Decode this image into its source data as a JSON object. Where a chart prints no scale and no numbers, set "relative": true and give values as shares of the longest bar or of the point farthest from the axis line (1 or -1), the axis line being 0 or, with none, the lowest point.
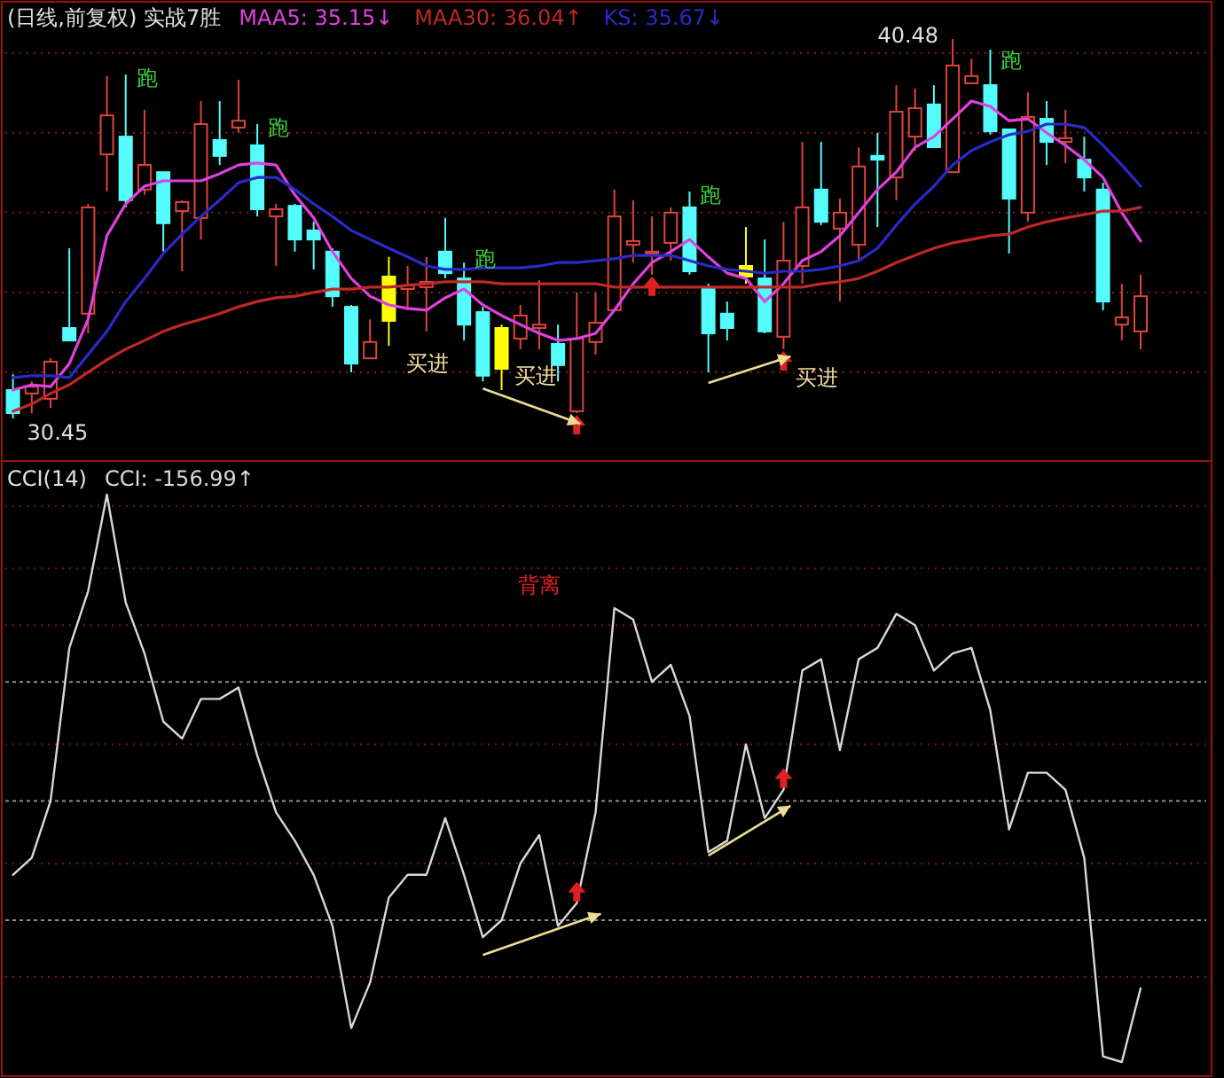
{
  "chart_data": [
    {
      "type": "candlestick",
      "title": "(日线,前复权) 实战7胜",
      "legend": "top left",
      "grid": true,
      "yticks": [
        {
          "value": 40.11,
          "label": null
        },
        {
          "value": 38.0,
          "label": null
        },
        {
          "value": 35.89,
          "label": null
        },
        {
          "value": 33.78,
          "label": null
        },
        {
          "value": 31.67,
          "label": null
        }
      ],
      "categories": [
        null,
        null,
        null,
        null,
        null,
        null,
        null,
        null,
        null,
        null,
        null,
        null,
        null,
        null,
        null,
        null,
        null,
        null,
        null,
        null,
        null,
        null,
        null,
        null,
        null,
        null,
        null,
        null,
        null,
        null,
        null,
        null,
        null,
        null,
        null,
        null,
        null,
        null,
        null,
        null,
        null,
        null,
        null,
        null,
        null,
        null,
        null,
        null,
        null,
        null,
        null,
        null,
        null,
        null,
        null,
        null,
        null,
        null,
        null,
        null,
        null
      ],
      "ohlc": [
        [
          31.2,
          31.62,
          30.45,
          30.59
        ],
        [
          31.11,
          31.43,
          30.59,
          31.29
        ],
        [
          30.97,
          32.04,
          30.73,
          31.95
        ],
        [
          32.84,
          34.95,
          32.51,
          32.51
        ],
        [
          33.22,
          36.12,
          32.7,
          36.03
        ],
        [
          37.43,
          39.5,
          36.45,
          38.46
        ],
        [
          37.9,
          39.54,
          36.03,
          36.22
        ],
        [
          36.5,
          38.61,
          36.36,
          37.15
        ],
        [
          36.96,
          36.96,
          34.86,
          35.61
        ],
        [
          35.93,
          36.22,
          34.34,
          36.17
        ],
        [
          35.75,
          38.84,
          35.18,
          38.23
        ],
        [
          37.81,
          38.84,
          37.15,
          37.39
        ],
        [
          38.14,
          39.4,
          38.0,
          38.32
        ],
        [
          37.67,
          38.23,
          35.79,
          35.98
        ],
        [
          35.79,
          36.12,
          34.48,
          35.98
        ],
        [
          36.07,
          36.12,
          34.86,
          35.18
        ],
        [
          35.42,
          35.65,
          34.39,
          35.18
        ],
        [
          34.86,
          34.95,
          33.4,
          33.68
        ],
        [
          33.4,
          33.45,
          31.67,
          31.9
        ],
        [
          32.04,
          33.07,
          32.04,
          32.47
        ],
        [
          34.2,
          34.72,
          32.37,
          33.03
        ],
        [
          33.87,
          34.48,
          33.31,
          33.97
        ],
        [
          33.92,
          34.72,
          32.75,
          34.06
        ],
        [
          34.86,
          35.75,
          34.15,
          34.29
        ],
        [
          34.15,
          34.57,
          32.51,
          32.93
        ],
        [
          33.26,
          33.4,
          31.43,
          31.58
        ],
        [
          32.84,
          32.93,
          31.2,
          31.76
        ],
        [
          32.56,
          33.45,
          32.28,
          33.17
        ],
        [
          32.84,
          34.11,
          32.28,
          32.93
        ],
        [
          32.42,
          32.93,
          31.43,
          31.86
        ],
        [
          30.64,
          33.78,
          30.59,
          32.56
        ],
        [
          32.47,
          33.78,
          32.14,
          32.98
        ],
        [
          33.31,
          36.5,
          33.31,
          35.79
        ],
        [
          35.04,
          36.22,
          34.57,
          35.14
        ],
        [
          34.81,
          35.79,
          34.25,
          34.86
        ],
        [
          35.09,
          36.03,
          34.62,
          35.89
        ],
        [
          36.03,
          36.45,
          34.25,
          34.34
        ],
        [
          33.87,
          34.01,
          31.67,
          32.7
        ],
        [
          33.22,
          33.54,
          32.51,
          32.84
        ],
        [
          34.48,
          35.51,
          34.01,
          34.2
        ],
        [
          34.15,
          35.18,
          32.7,
          32.75
        ],
        [
          32.61,
          35.65,
          32.28,
          34.62
        ],
        [
          34.48,
          37.76,
          34.01,
          36.03
        ],
        [
          36.5,
          37.76,
          35.56,
          35.65
        ],
        [
          35.47,
          36.26,
          33.54,
          35.89
        ],
        [
          35.04,
          37.62,
          34.62,
          37.11
        ],
        [
          37.39,
          38.0,
          35.51,
          37.29
        ],
        [
          36.82,
          39.26,
          36.22,
          38.56
        ],
        [
          37.9,
          39.17,
          37.53,
          38.65
        ],
        [
          38.75,
          39.26,
          37.62,
          37.62
        ],
        [
          36.96,
          40.48,
          36.96,
          39.78
        ],
        [
          39.31,
          39.96,
          39.31,
          39.5
        ],
        [
          39.26,
          40.2,
          37.95,
          38.04
        ],
        [
          38.09,
          38.09,
          34.81,
          36.26
        ],
        [
          35.89,
          39.07,
          35.65,
          38.42
        ],
        [
          38.37,
          38.84,
          37.15,
          37.76
        ],
        [
          37.76,
          38.61,
          37.2,
          37.86
        ],
        [
          37.29,
          37.9,
          36.45,
          36.82
        ],
        [
          36.5,
          36.68,
          33.31,
          33.54
        ],
        [
          32.93,
          34.01,
          32.51,
          33.12
        ],
        [
          32.75,
          34.25,
          32.28,
          33.68
        ]
      ],
      "colors": [
        "#54fcfc",
        "#e0443a",
        "#e0443a",
        "#54fcfc",
        "#e0443a",
        "#e0443a",
        "#54fcfc",
        "#e0443a",
        "#54fcfc",
        "#e0443a",
        "#e0443a",
        "#54fcfc",
        "#e0443a",
        "#54fcfc",
        "#e0443a",
        "#54fcfc",
        "#54fcfc",
        "#54fcfc",
        "#54fcfc",
        "#e0443a",
        "#ffff00",
        "#e0443a",
        "#e0443a",
        "#54fcfc",
        "#54fcfc",
        "#54fcfc",
        "#ffff00",
        "#e0443a",
        "#e0443a",
        "#54fcfc",
        "#e0443a",
        "#e0443a",
        "#e0443a",
        "#e0443a",
        "#e0443a",
        "#e0443a",
        "#54fcfc",
        "#54fcfc",
        "#54fcfc",
        "#ffff00",
        "#54fcfc",
        "#e0443a",
        "#e0443a",
        "#54fcfc",
        "#e0443a",
        "#e0443a",
        "#54fcfc",
        "#e0443a",
        "#e0443a",
        "#54fcfc",
        "#e0443a",
        "#e0443a",
        "#54fcfc",
        "#54fcfc",
        "#e0443a",
        "#54fcfc",
        "#e0443a",
        "#54fcfc",
        "#54fcfc",
        "#e0443a",
        "#e0443a"
      ],
      "series": [
        {
          "name": "MAA5: 35.15↓",
          "type": "line",
          "color": "#e040e0",
          "values": [
            31.2,
            31.34,
            31.29,
            31.9,
            33.07,
            35.28,
            36.12,
            36.59,
            36.73,
            36.73,
            36.73,
            36.92,
            37.15,
            37.2,
            37.15,
            36.36,
            35.75,
            34.86,
            34.15,
            33.68,
            33.45,
            33.36,
            33.31,
            33.64,
            33.87,
            33.45,
            33.17,
            32.93,
            32.7,
            32.51,
            32.56,
            32.7,
            33.31,
            34.01,
            34.57,
            34.86,
            35.18,
            34.72,
            34.29,
            34.15,
            33.54,
            34.01,
            34.62,
            34.86,
            35.28,
            35.89,
            36.5,
            36.96,
            37.62,
            37.9,
            38.37,
            38.84,
            38.7,
            38.32,
            38.37,
            38.0,
            37.67,
            37.29,
            36.82,
            35.89,
            35.14
          ]
        },
        {
          "name": "MAA30: 36.04↑",
          "type": "line",
          "color": "#c02828",
          "values": [
            30.64,
            30.83,
            31.11,
            31.34,
            31.67,
            32.0,
            32.28,
            32.51,
            32.75,
            32.93,
            33.07,
            33.22,
            33.4,
            33.54,
            33.64,
            33.68,
            33.78,
            33.87,
            33.87,
            33.92,
            33.92,
            33.97,
            34.01,
            34.06,
            34.06,
            34.06,
            34.01,
            34.01,
            34.01,
            34.01,
            34.01,
            34.01,
            33.92,
            33.92,
            33.92,
            33.92,
            33.92,
            33.92,
            33.92,
            33.92,
            33.92,
            33.92,
            33.92,
            34.01,
            34.06,
            34.15,
            34.34,
            34.57,
            34.76,
            34.95,
            35.09,
            35.18,
            35.28,
            35.32,
            35.51,
            35.65,
            35.75,
            35.84,
            35.93,
            35.93,
            36.03
          ]
        },
        {
          "name": "KS: 35.67↓",
          "type": "line",
          "color": "#2a2ac8",
          "values": [
            31.53,
            31.58,
            31.58,
            31.53,
            32.14,
            32.75,
            33.54,
            34.15,
            34.81,
            35.32,
            35.79,
            36.22,
            36.68,
            36.82,
            36.82,
            36.5,
            36.12,
            35.79,
            35.42,
            35.18,
            34.95,
            34.72,
            34.48,
            34.39,
            34.39,
            34.43,
            34.43,
            34.43,
            34.48,
            34.57,
            34.57,
            34.62,
            34.67,
            34.76,
            34.76,
            34.76,
            34.62,
            34.48,
            34.39,
            34.34,
            34.29,
            34.34,
            34.34,
            34.39,
            34.48,
            34.62,
            34.95,
            35.56,
            36.12,
            36.59,
            37.15,
            37.53,
            37.76,
            37.95,
            38.04,
            38.23,
            38.23,
            38.14,
            37.67,
            37.15,
            36.59
          ]
        }
      ],
      "annotations": [
        "跑",
        "跑",
        "跑",
        "跑",
        "跑",
        "买进",
        "买进",
        "买进",
        "40.48",
        "30.45"
      ]
    },
    {
      "type": "line",
      "title": "CCI(14)",
      "relative": true,
      "legend": "top left",
      "ref_lines": [
        {
          "axis": "y",
          "value": 0.98,
          "color": "#7a1818",
          "line_style": "dotted"
        },
        {
          "axis": "y",
          "value": 0.87,
          "color": "#7a1818",
          "line_style": "dotted"
        },
        {
          "axis": "y",
          "value": 0.77,
          "color": "#7a1818",
          "line_style": "dotted"
        },
        {
          "axis": "y",
          "value": 0.67,
          "color": "#909090",
          "line_style": "dashed"
        },
        {
          "axis": "y",
          "value": 0.56,
          "color": "#7a1818",
          "line_style": "dotted"
        },
        {
          "axis": "y",
          "value": 0.46,
          "color": "#909090",
          "line_style": "dashed"
        },
        {
          "axis": "y",
          "value": 0.35,
          "color": "#7a1818",
          "line_style": "dotted"
        },
        {
          "axis": "y",
          "value": 0.25,
          "color": "#909090",
          "line_style": "dashed"
        },
        {
          "axis": "y",
          "value": 0.15,
          "color": "#7a1818",
          "line_style": "dotted"
        }
      ],
      "categories": [
        null,
        null,
        null,
        null,
        null,
        null,
        null,
        null,
        null,
        null,
        null,
        null,
        null,
        null,
        null,
        null,
        null,
        null,
        null,
        null,
        null,
        null,
        null,
        null,
        null,
        null,
        null,
        null,
        null,
        null,
        null,
        null,
        null,
        null,
        null,
        null,
        null,
        null,
        null,
        null,
        null,
        null,
        null,
        null,
        null,
        null,
        null,
        null,
        null,
        null,
        null,
        null,
        null,
        null,
        null,
        null,
        null,
        null,
        null,
        null,
        null
      ],
      "series": [
        {
          "name": "CCI: -156.99↑",
          "color": "#d8d8d8",
          "values": [
            0.33,
            0.36,
            0.46,
            0.73,
            0.83,
            1.0,
            0.81,
            0.72,
            0.6,
            0.57,
            0.64,
            0.64,
            0.66,
            0.54,
            0.44,
            0.39,
            0.33,
            0.24,
            0.06,
            0.14,
            0.29,
            0.33,
            0.33,
            0.43,
            0.33,
            0.22,
            0.25,
            0.35,
            0.4,
            0.24,
            0.28,
            0.44,
            0.8,
            0.78,
            0.67,
            0.7,
            0.61,
            0.37,
            0.39,
            0.56,
            0.43,
            0.48,
            0.69,
            0.71,
            0.55,
            0.71,
            0.73,
            0.79,
            0.77,
            0.69,
            0.72,
            0.73,
            0.62,
            0.41,
            0.51,
            0.51,
            0.48,
            0.36,
            0.01,
            0.0,
            0.13
          ]
        }
      ],
      "annotations": [
        "背离"
      ]
    }
  ]
}
